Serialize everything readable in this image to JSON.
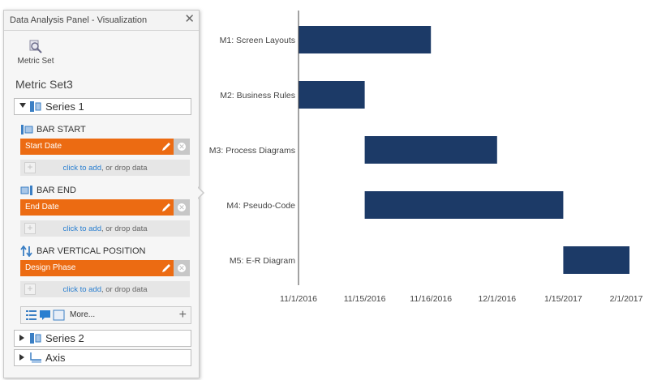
{
  "panel": {
    "title": "Data Analysis Panel - Visualization",
    "close_icon": "close-icon",
    "metric_set_button": "Metric Set",
    "metric_set_name": "Metric Set3"
  },
  "series1": {
    "label": "Series 1",
    "bar_start": {
      "label": "BAR START",
      "field": "Start Date"
    },
    "bar_end": {
      "label": "BAR END",
      "field": "End Date"
    },
    "bar_vertical": {
      "label": "BAR VERTICAL POSITION",
      "field": "Design Phase"
    },
    "drop_link": "click to add",
    "drop_rest": ", or drop data",
    "more_label": "More..."
  },
  "series2": {
    "label": "Series 2"
  },
  "axis": {
    "label": "Axis"
  },
  "colors": {
    "accent": "#ec6b12",
    "bar": "#1c3a67",
    "link": "#2a7fd0"
  },
  "chart_data": {
    "type": "bar",
    "orientation": "horizontal-range",
    "categories": [
      "M1: Screen Layouts",
      "M2: Business Rules",
      "M3: Process Diagrams",
      "M4: Pseudo-Code",
      "M5: E-R Diagram"
    ],
    "series": [
      {
        "name": "Design Phase",
        "start": [
          0,
          0,
          1,
          1,
          4
        ],
        "end": [
          2,
          1,
          3,
          4,
          5
        ]
      }
    ],
    "x_ticks": [
      "11/1/2016",
      "11/15/2016",
      "11/16/2016",
      "12/1/2016",
      "1/15/2017",
      "2/1/2017"
    ],
    "xlabel": "",
    "ylabel": "",
    "grid": false
  }
}
